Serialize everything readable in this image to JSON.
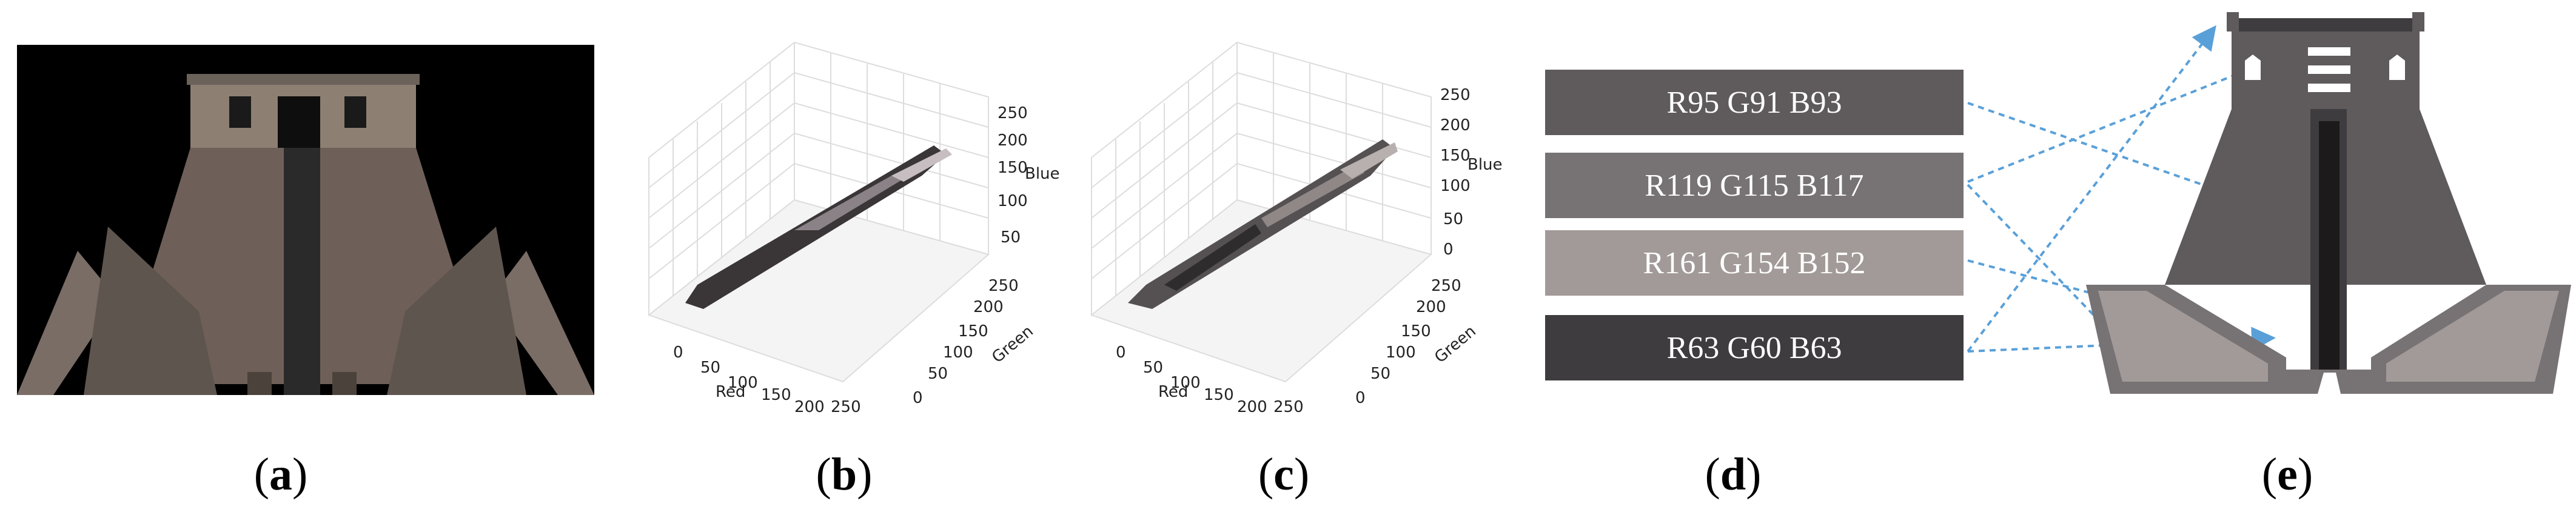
{
  "captions": {
    "a": "a",
    "b": "b",
    "c": "c",
    "d": "d",
    "e": "e"
  },
  "plot_b": {
    "xlabel": "Red",
    "ylabel": "Green",
    "zlabel": "Blue",
    "xticks": [
      "0",
      "50",
      "100",
      "150",
      "200",
      "250"
    ],
    "yticks": [
      "0",
      "50",
      "100",
      "150",
      "200",
      "250"
    ],
    "zticks": [
      "50",
      "100",
      "150",
      "200",
      "250"
    ]
  },
  "plot_c": {
    "xlabel": "Red",
    "ylabel": "Green",
    "zlabel": "Blue",
    "xticks": [
      "0",
      "50",
      "100",
      "150",
      "200",
      "250"
    ],
    "yticks": [
      "0",
      "50",
      "100",
      "150",
      "200",
      "250"
    ],
    "zticks": [
      "0",
      "50",
      "100",
      "150",
      "200",
      "250"
    ]
  },
  "swatches": [
    {
      "label": "R95 G91 B93",
      "color": "#5f5b5d"
    },
    {
      "label": "R119 G115 B117",
      "color": "#777375"
    },
    {
      "label": "R161 G154 B152",
      "color": "#a19a98"
    },
    {
      "label": "R63 G60 B63",
      "color": "#3f3c3f"
    }
  ],
  "colors": {
    "arrow": "#5aa0d8",
    "background": "#ffffff"
  }
}
